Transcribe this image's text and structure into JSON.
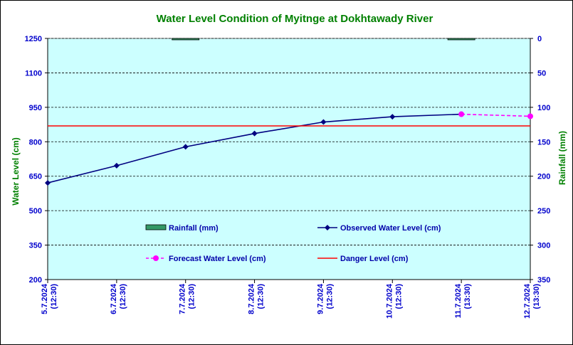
{
  "chart_data": {
    "type": "line",
    "title": "Water Level Condition of Myitnge at Dokhtawady River",
    "ylabel_left": "Water Level (cm)",
    "ylabel_right": "Rainfall (mm)",
    "ylim_left": [
      200,
      1250
    ],
    "yticks_left": [
      200,
      350,
      500,
      650,
      800,
      950,
      1100,
      1250
    ],
    "ylim_right_inverted": [
      0,
      350
    ],
    "yticks_right": [
      0,
      50,
      100,
      150,
      200,
      250,
      300,
      350
    ],
    "categories": [
      {
        "date": "5.7.2024",
        "time": "(12:30)"
      },
      {
        "date": "6.7.2024",
        "time": "(12:30)"
      },
      {
        "date": "7.7.2024",
        "time": "(12:30)"
      },
      {
        "date": "8.7.2024",
        "time": "(12:30)"
      },
      {
        "date": "9.7.2024",
        "time": "(12:30)"
      },
      {
        "date": "10.7.2024",
        "time": "(12:30)"
      },
      {
        "date": "11.7.2024",
        "time": "(13:30)"
      },
      {
        "date": "12.7.2024",
        "time": "(13:30)"
      }
    ],
    "series": [
      {
        "name": "Rainfall (mm)",
        "kind": "bar",
        "axis": "right",
        "color": "#339966",
        "values": [
          0,
          0,
          2,
          0,
          0,
          0,
          2,
          0
        ]
      },
      {
        "name": "Observed Water Level (cm)",
        "kind": "line",
        "axis": "left",
        "color": "#000080",
        "values": [
          621,
          696,
          778,
          836,
          886,
          909,
          920,
          null
        ]
      },
      {
        "name": "Forecast Water Level (cm)",
        "kind": "dashed-line",
        "axis": "left",
        "color": "#ff00ff",
        "values": [
          null,
          null,
          null,
          null,
          null,
          null,
          920,
          911
        ]
      },
      {
        "name": "Danger Level (cm)",
        "kind": "hline",
        "axis": "left",
        "color": "#ff0000",
        "value": 869
      }
    ],
    "grid": "horizontal dashed",
    "legend_placement": "inside-lower-center",
    "plot_background": "#ccffff"
  }
}
